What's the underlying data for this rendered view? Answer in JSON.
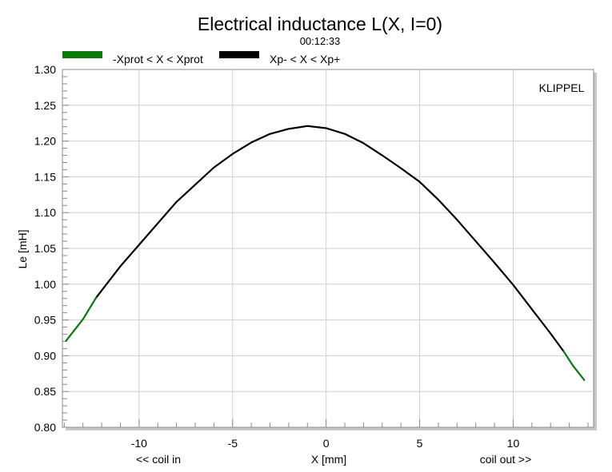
{
  "chart_data": {
    "type": "line",
    "title": "Electrical inductance L(X, I=0)",
    "subtitle": "00:12:33",
    "xlabel": "X [mm]",
    "ylabel": "Le [mH]",
    "x_left_note": "<< coil in",
    "x_right_note": "coil out >>",
    "brand": "KLIPPEL",
    "xlim": [
      -14.1,
      14.3
    ],
    "ylim": [
      0.8,
      1.3
    ],
    "x_ticks": [
      -10,
      -5,
      0,
      5,
      10
    ],
    "y_ticks": [
      0.8,
      0.85,
      0.9,
      0.95,
      1.0,
      1.05,
      1.1,
      1.15,
      1.2,
      1.25,
      1.3
    ],
    "x_tick_labels": [
      "-10",
      "-5",
      "0",
      "5",
      "10"
    ],
    "y_tick_labels": [
      "0.80",
      "0.85",
      "0.90",
      "0.95",
      "1.00",
      "1.05",
      "1.10",
      "1.15",
      "1.20",
      "1.25",
      "1.30"
    ],
    "grid": true,
    "legend_position": "top-left",
    "series": [
      {
        "name": "-Xprot < X < Xprot",
        "color": "#0a7a0a",
        "segments": [
          [
            [
              -13.9,
              0.921
            ],
            [
              -13.0,
              0.951
            ],
            [
              -12.3,
              0.981
            ]
          ],
          [
            [
              12.7,
              0.906
            ],
            [
              13.2,
              0.886
            ],
            [
              13.8,
              0.866
            ]
          ]
        ]
      },
      {
        "name": "Xp- < X < Xp+",
        "color": "#000000",
        "points": [
          [
            -12.3,
            0.981
          ],
          [
            -11.0,
            1.025
          ],
          [
            -10.0,
            1.055
          ],
          [
            -8.0,
            1.115
          ],
          [
            -6.0,
            1.163
          ],
          [
            -5.0,
            1.182
          ],
          [
            -4.0,
            1.198
          ],
          [
            -3.0,
            1.21
          ],
          [
            -2.0,
            1.217
          ],
          [
            -1.0,
            1.221
          ],
          [
            0.0,
            1.218
          ],
          [
            1.0,
            1.21
          ],
          [
            2.0,
            1.197
          ],
          [
            3.0,
            1.18
          ],
          [
            4.0,
            1.162
          ],
          [
            5.0,
            1.143
          ],
          [
            6.0,
            1.118
          ],
          [
            7.0,
            1.09
          ],
          [
            8.0,
            1.06
          ],
          [
            9.0,
            1.03
          ],
          [
            10.0,
            0.999
          ],
          [
            11.0,
            0.965
          ],
          [
            12.0,
            0.931
          ],
          [
            12.7,
            0.906
          ]
        ]
      }
    ]
  }
}
